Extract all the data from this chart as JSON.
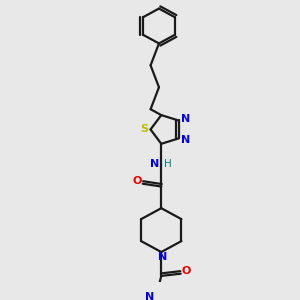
{
  "bg_color": "#e8e8e8",
  "bond_color": "#1a1a1a",
  "N_color": "#0000ee",
  "O_color": "#ee0000",
  "S_color": "#bbbb00",
  "H_color": "#008080",
  "figsize": [
    3.0,
    3.0
  ],
  "dpi": 100,
  "xlim": [
    0,
    10
  ],
  "ylim": [
    0,
    10
  ]
}
